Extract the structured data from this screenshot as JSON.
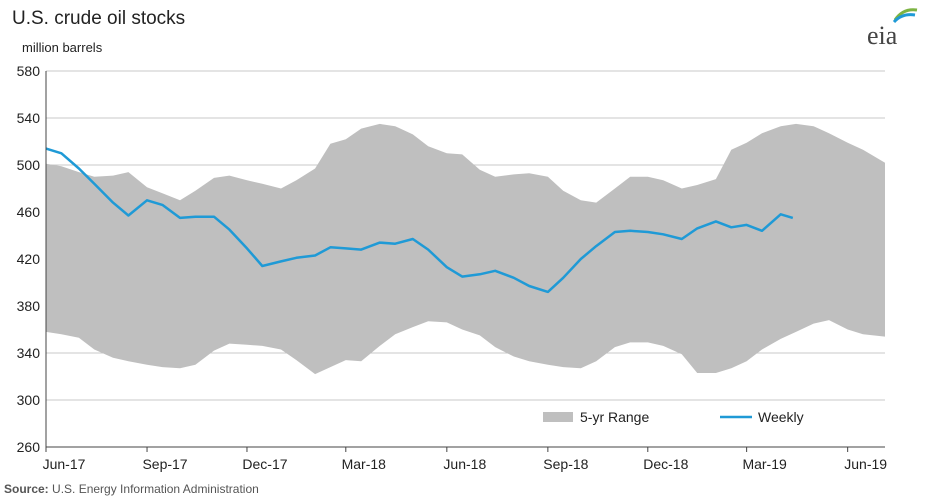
{
  "header": {
    "title": "U.S. crude oil stocks",
    "units": "million barrels",
    "source_label": "Source:",
    "source_text": "U.S. Energy Information Administration",
    "logo_text": "eia"
  },
  "colors": {
    "range": "#bfbfbf",
    "line": "#1f9ad6",
    "grid": "#c8c8c8",
    "axis": "#444444"
  },
  "chart_data": {
    "type": "area",
    "ylabel": "million barrels",
    "ylim": [
      260,
      580
    ],
    "yticks": [
      260,
      300,
      340,
      380,
      420,
      460,
      500,
      540,
      580
    ],
    "xlim": [
      "2017-06-01",
      "2019-07-05"
    ],
    "xticks": [
      {
        "date": "2017-06-01",
        "label": "Jun-17"
      },
      {
        "date": "2017-09-01",
        "label": "Sep-17"
      },
      {
        "date": "2017-12-01",
        "label": "Dec-17"
      },
      {
        "date": "2018-03-01",
        "label": "Mar-18"
      },
      {
        "date": "2018-06-01",
        "label": "Jun-18"
      },
      {
        "date": "2018-09-01",
        "label": "Sep-18"
      },
      {
        "date": "2018-12-01",
        "label": "Dec-18"
      },
      {
        "date": "2019-03-01",
        "label": "Mar-19"
      },
      {
        "date": "2019-06-01",
        "label": "Jun-19"
      }
    ],
    "legend_position": "bottom-right",
    "series": [
      {
        "name": "5-yr Range",
        "kind": "range",
        "x": [
          "2017-06-01",
          "2017-06-15",
          "2017-07-01",
          "2017-07-15",
          "2017-08-01",
          "2017-08-15",
          "2017-09-01",
          "2017-09-15",
          "2017-10-01",
          "2017-10-15",
          "2017-11-01",
          "2017-11-15",
          "2017-12-01",
          "2017-12-15",
          "2018-01-01",
          "2018-01-15",
          "2018-02-01",
          "2018-02-15",
          "2018-03-01",
          "2018-03-15",
          "2018-04-01",
          "2018-04-15",
          "2018-05-01",
          "2018-05-15",
          "2018-06-01",
          "2018-06-15",
          "2018-07-01",
          "2018-07-15",
          "2018-08-01",
          "2018-08-15",
          "2018-09-01",
          "2018-09-15",
          "2018-10-01",
          "2018-10-15",
          "2018-11-01",
          "2018-11-15",
          "2018-12-01",
          "2018-12-15",
          "2019-01-01",
          "2019-01-15",
          "2019-02-01",
          "2019-02-15",
          "2019-03-01",
          "2019-03-15",
          "2019-04-01",
          "2019-04-15",
          "2019-05-01",
          "2019-05-15",
          "2019-06-01",
          "2019-06-15",
          "2019-07-05"
        ],
        "high": [
          501,
          499,
          494,
          490,
          491,
          494,
          481,
          476,
          470,
          478,
          489,
          491,
          487,
          484,
          480,
          487,
          497,
          518,
          522,
          531,
          535,
          533,
          526,
          516,
          510,
          509,
          496,
          490,
          492,
          493,
          490,
          478,
          470,
          468,
          480,
          490,
          490,
          487,
          480,
          483,
          488,
          513,
          519,
          527,
          533,
          535,
          533,
          527,
          519,
          513,
          502
        ],
        "low": [
          358,
          356,
          353,
          343,
          336,
          333,
          330,
          328,
          327,
          330,
          342,
          348,
          347,
          346,
          343,
          334,
          322,
          328,
          334,
          333,
          346,
          356,
          362,
          367,
          366,
          360,
          355,
          345,
          337,
          333,
          330,
          328,
          327,
          333,
          345,
          349,
          349,
          346,
          339,
          323,
          323,
          327,
          333,
          343,
          352,
          358,
          365,
          368,
          360,
          356,
          354
        ]
      },
      {
        "name": "Weekly",
        "kind": "line",
        "x": [
          "2017-06-01",
          "2017-06-15",
          "2017-07-01",
          "2017-07-15",
          "2017-08-01",
          "2017-08-15",
          "2017-09-01",
          "2017-09-15",
          "2017-10-01",
          "2017-10-15",
          "2017-11-01",
          "2017-11-15",
          "2017-12-01",
          "2017-12-15",
          "2018-01-01",
          "2018-01-15",
          "2018-02-01",
          "2018-02-15",
          "2018-03-01",
          "2018-03-15",
          "2018-04-01",
          "2018-04-15",
          "2018-05-01",
          "2018-05-15",
          "2018-06-01",
          "2018-06-15",
          "2018-07-01",
          "2018-07-15",
          "2018-08-01",
          "2018-08-15",
          "2018-09-01",
          "2018-09-15",
          "2018-10-01",
          "2018-10-15",
          "2018-11-01",
          "2018-11-15",
          "2018-12-01",
          "2018-12-15",
          "2019-01-01",
          "2019-01-15",
          "2019-02-01",
          "2019-02-15",
          "2019-03-01",
          "2019-03-15",
          "2019-04-01",
          "2019-04-12"
        ],
        "values": [
          514,
          510,
          497,
          484,
          468,
          457,
          470,
          466,
          455,
          456,
          456,
          445,
          429,
          414,
          418,
          421,
          423,
          430,
          429,
          428,
          434,
          433,
          437,
          428,
          413,
          405,
          407,
          410,
          404,
          397,
          392,
          404,
          420,
          431,
          443,
          444,
          443,
          441,
          437,
          446,
          452,
          447,
          449,
          444,
          458,
          455
        ]
      }
    ]
  }
}
